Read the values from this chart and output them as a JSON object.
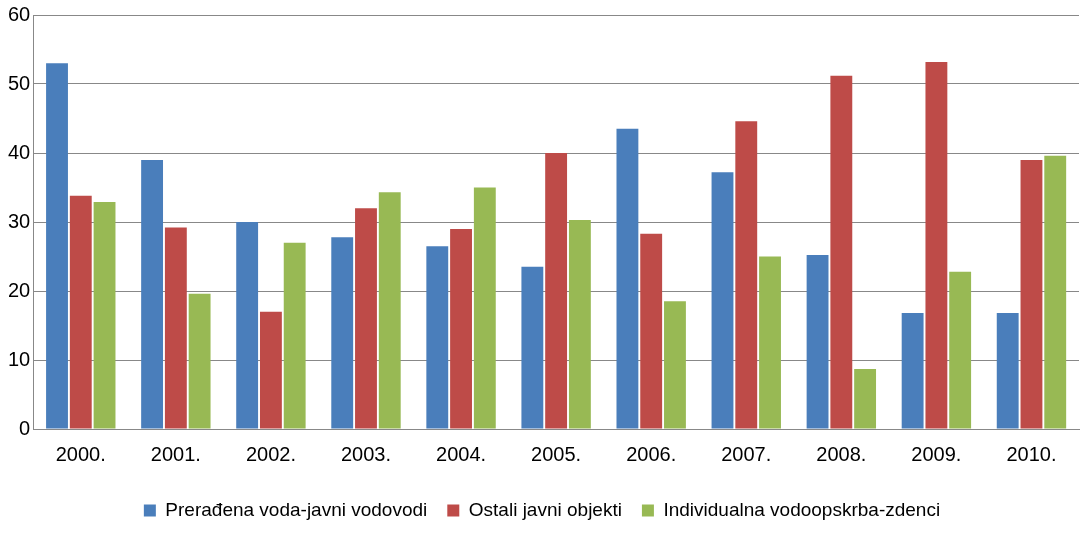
{
  "chart_data": {
    "type": "bar",
    "categories": [
      "2000.",
      "2001.",
      "2002.",
      "2003.",
      "2004.",
      "2005.",
      "2006.",
      "2007.",
      "2008.",
      "2009.",
      "2010."
    ],
    "series": [
      {
        "name": "Prerađena voda-javni vodovodi",
        "color": "#4a7ebb",
        "values": [
          53,
          39,
          30,
          27.8,
          26.5,
          23.5,
          43.5,
          37.2,
          25.2,
          16.8,
          16.8
        ]
      },
      {
        "name": "Ostali javni objekti",
        "color": "#be4b48",
        "values": [
          33.8,
          29.2,
          17,
          32,
          29,
          40,
          28.3,
          44.6,
          51.2,
          53.2,
          39
        ]
      },
      {
        "name": "Individualna vodoopskrba-zdenci",
        "color": "#98b954",
        "values": [
          32.9,
          19.6,
          27,
          34.3,
          35,
          30.3,
          18.5,
          25,
          8.7,
          22.8,
          39.6
        ]
      }
    ],
    "ylim": [
      0,
      60
    ],
    "yticks": [
      0,
      10,
      20,
      30,
      40,
      50,
      60
    ],
    "grid": "y",
    "legend": "bottom"
  }
}
